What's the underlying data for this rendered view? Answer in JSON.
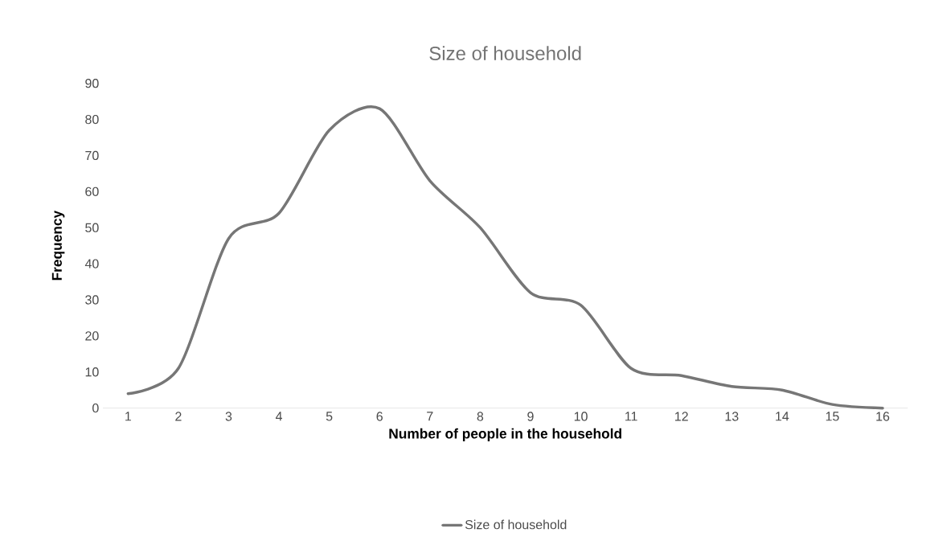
{
  "chart_data": {
    "type": "line",
    "title": "Size of household",
    "xlabel": "Number of people in the household",
    "ylabel": "Frequency",
    "categories": [
      "1",
      "2",
      "3",
      "4",
      "5",
      "6",
      "7",
      "8",
      "9",
      "10",
      "11",
      "12",
      "13",
      "14",
      "15",
      "16"
    ],
    "series": [
      {
        "name": "Size of household",
        "color": "#767676",
        "values": [
          4,
          11,
          47,
          54,
          77,
          83,
          63,
          50,
          32,
          28.5,
          11,
          9,
          6,
          5,
          1,
          0
        ]
      }
    ],
    "ylim": [
      0,
      90
    ],
    "yticks": [
      0,
      10,
      20,
      30,
      40,
      50,
      60,
      70,
      80,
      90
    ],
    "grid": false,
    "legend": "bottom",
    "marker": "none",
    "line_style": "solid"
  }
}
